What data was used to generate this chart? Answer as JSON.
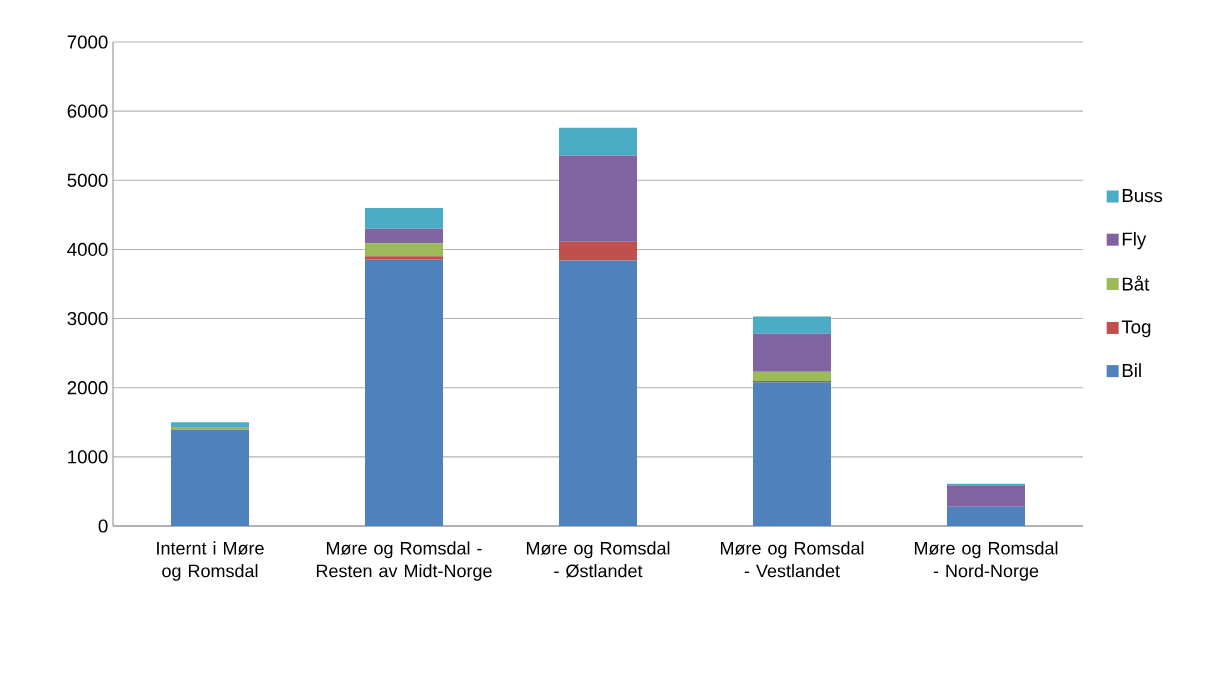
{
  "chart_data": {
    "type": "bar",
    "stacked": true,
    "categories": [
      "Internt i Møre og Romsdal",
      "Møre og Romsdal - Resten av Midt-Norge",
      "Møre og Romsdal - Østlandet",
      "Møre og Romsdal - Vestlandet",
      "Møre og Romsdal - Nord-Norge"
    ],
    "series": [
      {
        "name": "Bil",
        "color": "#4f81bd",
        "values": [
          1390,
          3850,
          3840,
          2080,
          280
        ]
      },
      {
        "name": "Tog",
        "color": "#c0504d",
        "values": [
          0,
          50,
          270,
          20,
          0
        ]
      },
      {
        "name": "Båt",
        "color": "#9bbb59",
        "values": [
          40,
          190,
          0,
          130,
          0
        ]
      },
      {
        "name": "Fly",
        "color": "#8064a2",
        "values": [
          0,
          210,
          1250,
          550,
          310
        ]
      },
      {
        "name": "Buss",
        "color": "#4bacc6",
        "values": [
          70,
          300,
          400,
          250,
          20
        ]
      }
    ],
    "ylim": [
      0,
      7000
    ],
    "yticks": [
      0,
      1000,
      2000,
      3000,
      4000,
      5000,
      6000,
      7000
    ],
    "grid": "y",
    "legend": "right"
  }
}
